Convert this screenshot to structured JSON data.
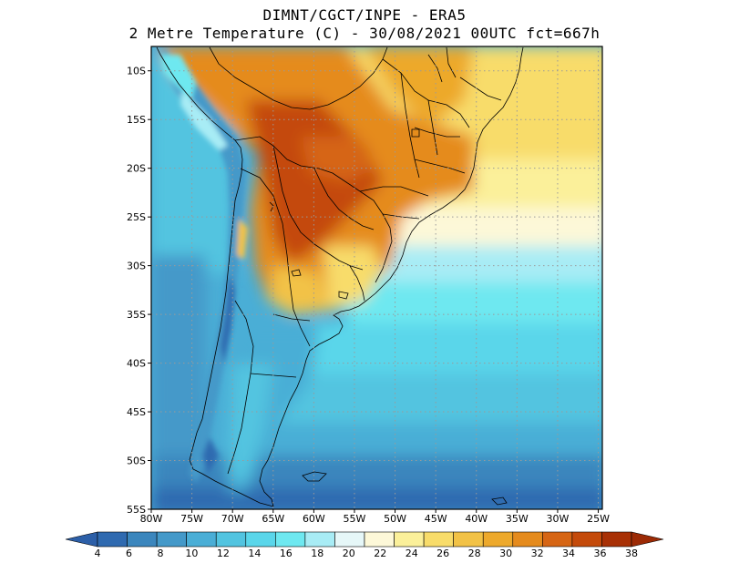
{
  "title_line1": "DIMNT/CGCT/INPE -  ERA5",
  "title_line2": "2 Metre Temperature (C) -  30/08/2021 00UTC fct=667h",
  "lat_labels": [
    "10S",
    "15S",
    "20S",
    "25S",
    "30S",
    "35S",
    "40S",
    "45S",
    "50S",
    "55S"
  ],
  "lat_values": [
    -10,
    -15,
    -20,
    -25,
    -30,
    -35,
    -40,
    -45,
    -50,
    -55
  ],
  "lon_labels": [
    "80W",
    "75W",
    "70W",
    "65W",
    "60W",
    "55W",
    "50W",
    "45W",
    "40W",
    "35W",
    "30W",
    "25W"
  ],
  "lon_values": [
    -80,
    -75,
    -70,
    -65,
    -60,
    -55,
    -50,
    -45,
    -40,
    -35,
    -30,
    -25
  ],
  "map_extent": {
    "lon": [
      -80,
      -24.5
    ],
    "lat": [
      -55,
      -7.5
    ]
  },
  "colorbar": {
    "ticks": [
      "4",
      "6",
      "8",
      "10",
      "12",
      "14",
      "16",
      "18",
      "20",
      "22",
      "24",
      "26",
      "28",
      "30",
      "32",
      "34",
      "36",
      "38"
    ],
    "colors": [
      "#2f6ab0",
      "#3b86bd",
      "#4499c9",
      "#4aaed6",
      "#52c4e0",
      "#5ad6ea",
      "#6ee8f0",
      "#a8ecf5",
      "#e6f7f8",
      "#fdf8d8",
      "#fbf09a",
      "#f8dc6a",
      "#f2c246",
      "#eda92c",
      "#e58b1d",
      "#d66514",
      "#c44a0a",
      "#a83005"
    ],
    "under_color": "#2c5fa8",
    "over_color": "#9c2a05"
  },
  "chart_data": {
    "type": "heatmap",
    "variable": "2 Metre Temperature (C)",
    "units": "C",
    "x_axis": "longitude",
    "y_axis": "latitude",
    "xlim": [
      -80,
      -24.5
    ],
    "ylim": [
      -55,
      -7.5
    ],
    "levels": [
      4,
      6,
      8,
      10,
      12,
      14,
      16,
      18,
      20,
      22,
      24,
      26,
      28,
      30,
      32,
      34,
      36,
      38
    ],
    "regions": [
      {
        "name": "central Brazil / Mato Grosso",
        "approx_temp_C": 34
      },
      {
        "name": "Bolivia / Paraguay / northern Argentina",
        "approx_temp_C": 32
      },
      {
        "name": "Amazon north",
        "approx_temp_C": 30
      },
      {
        "name": "southeast Brazil coast",
        "approx_temp_C": 26
      },
      {
        "name": "Atlantic 25S-30S",
        "approx_temp_C": 21
      },
      {
        "name": "Atlantic 35S-40S",
        "approx_temp_C": 15
      },
      {
        "name": "Patagonia / Atlantic 45S-50S",
        "approx_temp_C": 10
      },
      {
        "name": "Southern Ocean 55S",
        "approx_temp_C": 6
      },
      {
        "name": "Andes ridge",
        "approx_temp_C": 5
      },
      {
        "name": "Pacific coast 10S-20S",
        "approx_temp_C": 13
      }
    ]
  }
}
